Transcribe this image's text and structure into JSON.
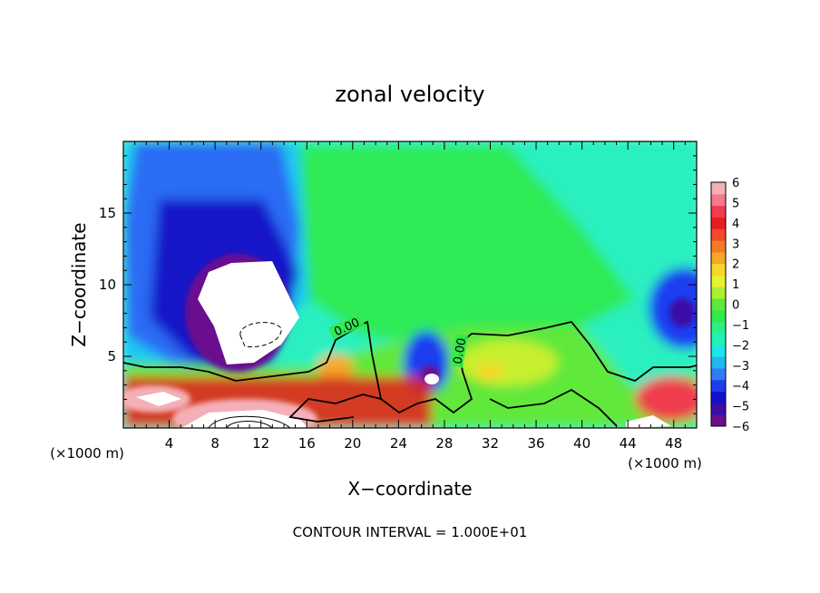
{
  "chart_data": {
    "type": "heatmap",
    "title": "zonal velocity",
    "xlabel": "X−coordinate",
    "ylabel": "Z−coordinate",
    "x_unit_left": "(×1000 m)",
    "x_unit_right": "(×1000 m)",
    "xlim": [
      0,
      50
    ],
    "ylim": [
      0,
      20
    ],
    "x_ticks": [
      4,
      8,
      12,
      16,
      20,
      24,
      28,
      32,
      36,
      40,
      44,
      48
    ],
    "y_ticks": [
      5,
      10,
      15
    ],
    "colorbar": {
      "min": -6,
      "max": 6,
      "tick_labels": [
        "6",
        "5",
        "4",
        "3",
        "2",
        "1",
        "0",
        "−1",
        "−2",
        "−3",
        "−4",
        "−5",
        "−6"
      ],
      "colors": [
        "#6a0d8f",
        "#3a0fa8",
        "#1510c8",
        "#1d3cf0",
        "#2f7cf5",
        "#22b7f0",
        "#1be6e6",
        "#25f0b8",
        "#2bf08a",
        "#30ea4a",
        "#60e83a",
        "#a8f030",
        "#e6f22e",
        "#f7d62a",
        "#f7a726",
        "#f5782a",
        "#f04a2a",
        "#e81c1c",
        "#ef3c4e",
        "#f27a8a",
        "#f4b0b8"
      ]
    },
    "contour_labels": [
      "0.00",
      "0.00"
    ],
    "features": [
      {
        "kind": "max-negative",
        "x": 10.5,
        "z": 8.5,
        "level": "below -6"
      },
      {
        "kind": "negative",
        "x": 26,
        "z": 4,
        "level": "-5"
      },
      {
        "kind": "negative",
        "x": 49,
        "z": 8,
        "level": "-5"
      },
      {
        "kind": "positive",
        "x": 11,
        "z": 1,
        "level": "above 6"
      },
      {
        "kind": "positive",
        "x": 2,
        "z": 2,
        "level": "above 6"
      },
      {
        "kind": "positive",
        "x": 47,
        "z": 1.5,
        "level": "5"
      }
    ],
    "footer": "CONTOUR INTERVAL = 1.000E+01"
  }
}
